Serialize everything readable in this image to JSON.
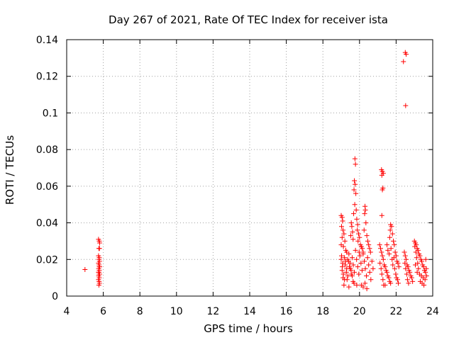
{
  "chart_data": {
    "type": "scatter",
    "title": "Day 267 of 2021, Rate Of TEC Index for receiver ista",
    "xlabel": "GPS time / hours",
    "ylabel": "ROTI / TECUs",
    "xlim": [
      4,
      24
    ],
    "ylim": [
      0,
      0.14
    ],
    "xticks": [
      4,
      6,
      8,
      10,
      12,
      14,
      16,
      18,
      20,
      22,
      24
    ],
    "yticks": [
      0,
      0.02,
      0.04,
      0.06,
      0.08,
      0.1,
      0.12,
      0.14
    ],
    "xtick_labels": [
      "4",
      "6",
      "8",
      "10",
      "12",
      "14",
      "16",
      "18",
      "20",
      "22",
      "24"
    ],
    "ytick_labels": [
      "0",
      "0.02",
      "0.04",
      "0.06",
      "0.08",
      "0.1",
      "0.12",
      "0.14"
    ],
    "grid": true,
    "marker": "+",
    "marker_color": "#ff0000",
    "series": [
      {
        "name": "ROTI",
        "points": [
          [
            5.0,
            0.0145
          ],
          [
            5.74,
            0.031
          ],
          [
            5.78,
            0.03
          ],
          [
            5.8,
            0.029
          ],
          [
            5.76,
            0.026
          ],
          [
            5.79,
            0.026
          ],
          [
            5.74,
            0.022
          ],
          [
            5.78,
            0.021
          ],
          [
            5.76,
            0.02
          ],
          [
            5.79,
            0.019
          ],
          [
            5.74,
            0.018
          ],
          [
            5.77,
            0.017
          ],
          [
            5.8,
            0.016
          ],
          [
            5.75,
            0.015
          ],
          [
            5.78,
            0.014
          ],
          [
            5.74,
            0.013
          ],
          [
            5.77,
            0.012
          ],
          [
            5.8,
            0.012
          ],
          [
            5.75,
            0.011
          ],
          [
            5.78,
            0.01
          ],
          [
            5.74,
            0.009
          ],
          [
            5.77,
            0.008
          ],
          [
            5.79,
            0.007
          ],
          [
            5.76,
            0.006
          ],
          [
            5.78,
            0.016
          ],
          [
            5.76,
            0.013
          ],
          [
            19.0,
            0.044
          ],
          [
            19.05,
            0.043
          ],
          [
            19.08,
            0.041
          ],
          [
            19.02,
            0.038
          ],
          [
            19.1,
            0.036
          ],
          [
            19.15,
            0.034
          ],
          [
            19.05,
            0.032
          ],
          [
            19.2,
            0.03
          ],
          [
            19.0,
            0.028
          ],
          [
            19.12,
            0.027
          ],
          [
            19.25,
            0.025
          ],
          [
            19.3,
            0.024
          ],
          [
            19.02,
            0.022
          ],
          [
            19.18,
            0.021
          ],
          [
            19.35,
            0.02
          ],
          [
            19.4,
            0.019
          ],
          [
            19.08,
            0.018
          ],
          [
            19.22,
            0.017
          ],
          [
            19.45,
            0.016
          ],
          [
            19.5,
            0.015
          ],
          [
            19.05,
            0.014
          ],
          [
            19.28,
            0.013
          ],
          [
            19.55,
            0.012
          ],
          [
            19.6,
            0.011
          ],
          [
            19.1,
            0.01
          ],
          [
            19.32,
            0.009
          ],
          [
            19.65,
            0.008
          ],
          [
            19.7,
            0.007
          ],
          [
            19.15,
            0.006
          ],
          [
            19.42,
            0.005
          ],
          [
            19.0,
            0.02
          ],
          [
            19.06,
            0.016
          ],
          [
            19.12,
            0.012
          ],
          [
            19.18,
            0.009
          ],
          [
            19.24,
            0.019
          ],
          [
            19.3,
            0.015
          ],
          [
            19.36,
            0.011
          ],
          [
            19.42,
            0.023
          ],
          [
            19.48,
            0.018
          ],
          [
            19.54,
            0.014
          ],
          [
            19.6,
            0.021
          ],
          [
            19.66,
            0.017
          ],
          [
            19.72,
            0.013
          ],
          [
            19.78,
            0.025
          ],
          [
            19.84,
            0.02
          ],
          [
            19.9,
            0.016
          ],
          [
            19.96,
            0.012
          ],
          [
            20.02,
            0.022
          ],
          [
            20.08,
            0.018
          ],
          [
            20.14,
            0.014
          ],
          [
            20.2,
            0.024
          ],
          [
            20.26,
            0.019
          ],
          [
            20.32,
            0.015
          ],
          [
            20.38,
            0.011
          ],
          [
            20.44,
            0.021
          ],
          [
            20.5,
            0.017
          ],
          [
            20.56,
            0.013
          ],
          [
            20.62,
            0.009
          ],
          [
            20.68,
            0.019
          ],
          [
            20.74,
            0.015
          ],
          [
            19.55,
            0.04
          ],
          [
            19.58,
            0.038
          ],
          [
            19.62,
            0.035
          ],
          [
            19.52,
            0.033
          ],
          [
            19.65,
            0.031
          ],
          [
            19.75,
            0.075
          ],
          [
            19.78,
            0.072
          ],
          [
            19.72,
            0.063
          ],
          [
            19.76,
            0.061
          ],
          [
            19.7,
            0.058
          ],
          [
            19.8,
            0.056
          ],
          [
            19.74,
            0.05
          ],
          [
            19.82,
            0.047
          ],
          [
            19.68,
            0.045
          ],
          [
            19.85,
            0.042
          ],
          [
            19.9,
            0.039
          ],
          [
            19.88,
            0.036
          ],
          [
            19.95,
            0.034
          ],
          [
            20.0,
            0.032
          ],
          [
            19.92,
            0.03
          ],
          [
            20.05,
            0.028
          ],
          [
            20.1,
            0.027
          ],
          [
            20.15,
            0.026
          ],
          [
            19.98,
            0.024
          ],
          [
            20.2,
            0.023
          ],
          [
            20.3,
            0.049
          ],
          [
            20.32,
            0.047
          ],
          [
            20.28,
            0.045
          ],
          [
            20.35,
            0.04
          ],
          [
            20.25,
            0.036
          ],
          [
            20.4,
            0.033
          ],
          [
            20.45,
            0.03
          ],
          [
            20.5,
            0.028
          ],
          [
            20.55,
            0.026
          ],
          [
            20.6,
            0.024
          ],
          [
            20.1,
            0.006
          ],
          [
            20.2,
            0.005
          ],
          [
            20.3,
            0.007
          ],
          [
            20.4,
            0.004
          ],
          [
            19.85,
            0.006
          ],
          [
            21.2,
            0.069
          ],
          [
            21.25,
            0.068
          ],
          [
            21.3,
            0.067
          ],
          [
            21.22,
            0.066
          ],
          [
            21.28,
            0.059
          ],
          [
            21.25,
            0.058
          ],
          [
            21.22,
            0.044
          ],
          [
            21.1,
            0.028
          ],
          [
            21.15,
            0.026
          ],
          [
            21.2,
            0.024
          ],
          [
            21.25,
            0.022
          ],
          [
            21.3,
            0.02
          ],
          [
            21.12,
            0.018
          ],
          [
            21.35,
            0.017
          ],
          [
            21.4,
            0.016
          ],
          [
            21.18,
            0.015
          ],
          [
            21.45,
            0.014
          ],
          [
            21.5,
            0.013
          ],
          [
            21.22,
            0.012
          ],
          [
            21.55,
            0.011
          ],
          [
            21.6,
            0.01
          ],
          [
            21.28,
            0.009
          ],
          [
            21.65,
            0.008
          ],
          [
            21.7,
            0.007
          ],
          [
            21.32,
            0.006
          ],
          [
            21.7,
            0.039
          ],
          [
            21.75,
            0.038
          ],
          [
            21.68,
            0.036
          ],
          [
            21.8,
            0.034
          ],
          [
            21.65,
            0.032
          ],
          [
            21.85,
            0.03
          ],
          [
            21.9,
            0.028
          ],
          [
            21.72,
            0.026
          ],
          [
            21.95,
            0.024
          ],
          [
            22.0,
            0.022
          ],
          [
            21.78,
            0.02
          ],
          [
            22.05,
            0.019
          ],
          [
            22.1,
            0.018
          ],
          [
            21.82,
            0.017
          ],
          [
            22.15,
            0.016
          ],
          [
            21.5,
            0.028
          ],
          [
            21.55,
            0.025
          ],
          [
            21.62,
            0.023
          ],
          [
            21.88,
            0.021
          ],
          [
            21.92,
            0.015
          ],
          [
            21.98,
            0.012
          ],
          [
            22.02,
            0.01
          ],
          [
            22.08,
            0.009
          ],
          [
            22.12,
            0.007
          ],
          [
            21.4,
            0.006
          ],
          [
            22.5,
            0.133
          ],
          [
            22.55,
            0.132
          ],
          [
            22.4,
            0.128
          ],
          [
            22.52,
            0.104
          ],
          [
            22.45,
            0.024
          ],
          [
            22.5,
            0.022
          ],
          [
            22.55,
            0.02
          ],
          [
            22.48,
            0.018
          ],
          [
            22.6,
            0.017
          ],
          [
            22.65,
            0.016
          ],
          [
            22.52,
            0.015
          ],
          [
            22.7,
            0.014
          ],
          [
            22.75,
            0.013
          ],
          [
            22.58,
            0.012
          ],
          [
            22.8,
            0.011
          ],
          [
            22.85,
            0.01
          ],
          [
            22.62,
            0.009
          ],
          [
            22.9,
            0.008
          ],
          [
            22.68,
            0.007
          ],
          [
            23.0,
            0.03
          ],
          [
            23.05,
            0.029
          ],
          [
            23.1,
            0.028
          ],
          [
            23.02,
            0.027
          ],
          [
            23.15,
            0.026
          ],
          [
            23.2,
            0.025
          ],
          [
            23.08,
            0.024
          ],
          [
            23.25,
            0.023
          ],
          [
            23.3,
            0.022
          ],
          [
            23.12,
            0.021
          ],
          [
            23.35,
            0.02
          ],
          [
            23.4,
            0.019
          ],
          [
            23.18,
            0.018
          ],
          [
            23.45,
            0.017
          ],
          [
            23.5,
            0.016
          ],
          [
            23.22,
            0.015
          ],
          [
            23.55,
            0.014
          ],
          [
            23.6,
            0.013
          ],
          [
            23.28,
            0.012
          ],
          [
            23.38,
            0.011
          ],
          [
            23.48,
            0.01
          ],
          [
            23.58,
            0.009
          ],
          [
            23.32,
            0.008
          ],
          [
            23.42,
            0.007
          ],
          [
            23.52,
            0.006
          ],
          [
            23.62,
            0.02
          ],
          [
            23.65,
            0.015
          ],
          [
            23.66,
            0.011
          ],
          [
            23.05,
            0.017
          ],
          [
            23.15,
            0.013
          ]
        ]
      }
    ]
  }
}
